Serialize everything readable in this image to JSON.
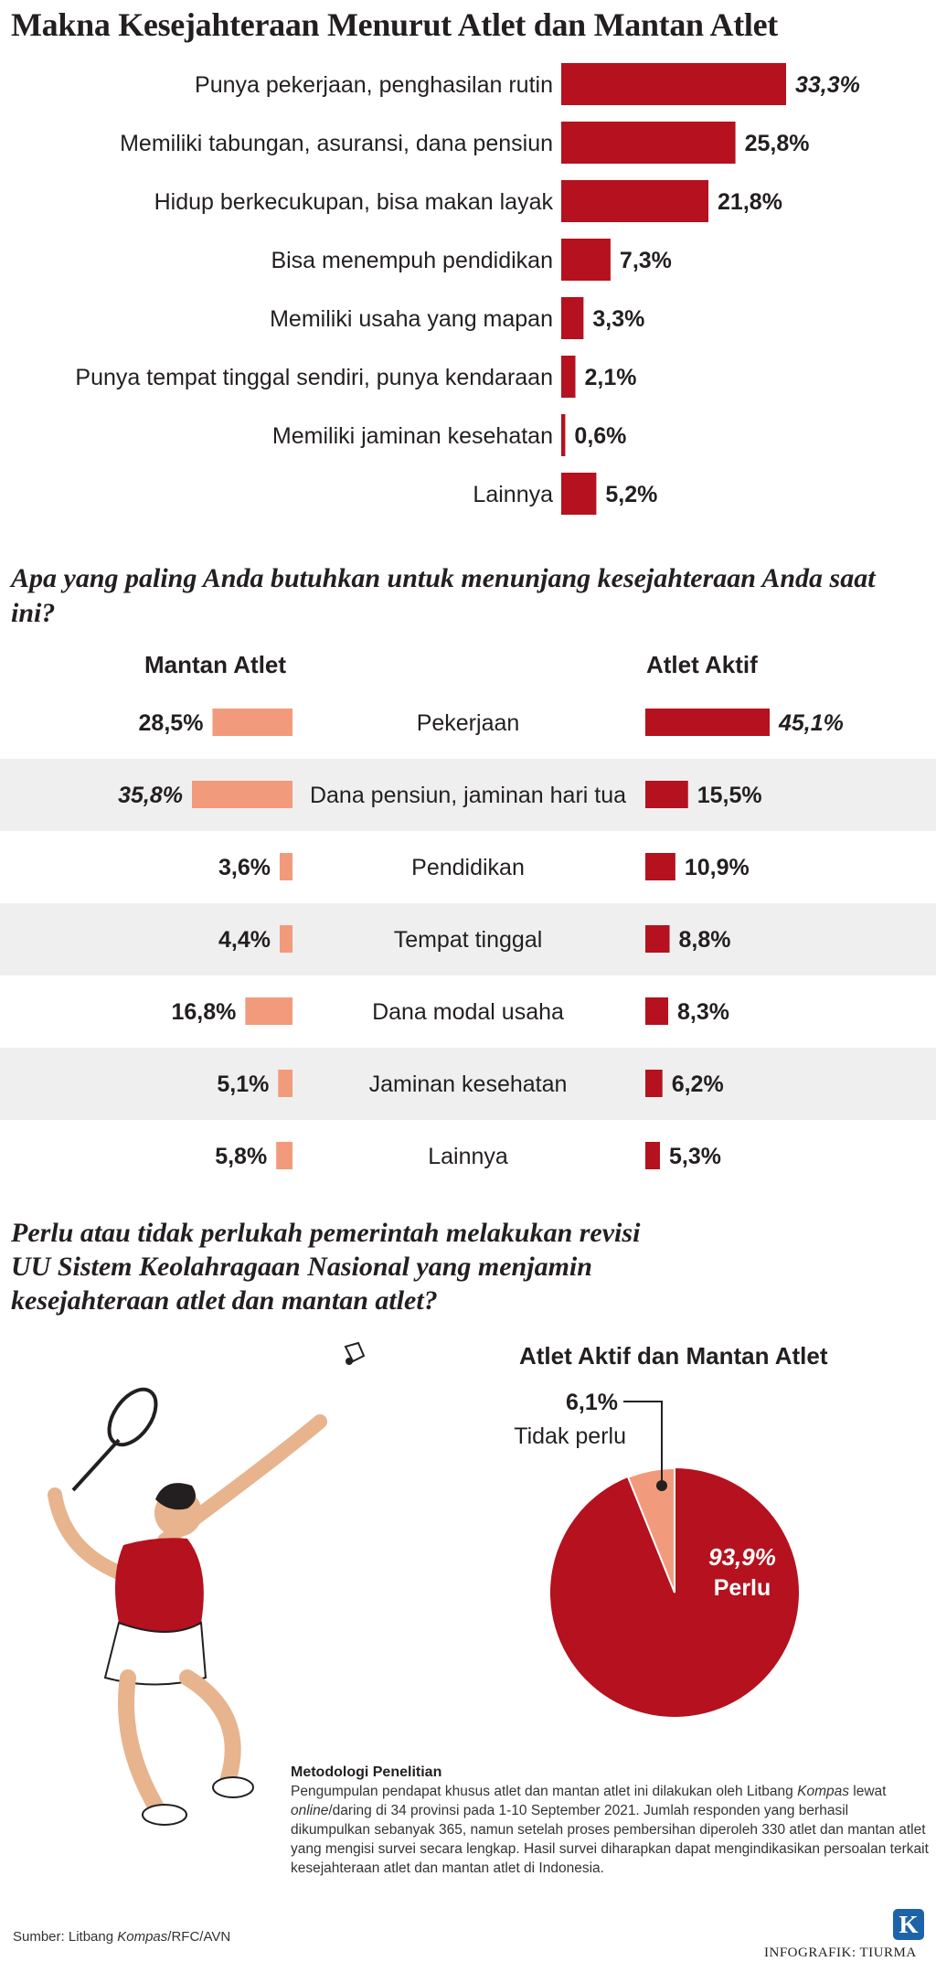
{
  "title": "Makna Kesejahteraan Menurut Atlet dan Mantan Atlet",
  "colors": {
    "dark_red": "#b5111e",
    "salmon": "#f29a7c",
    "stripe": "#efefef"
  },
  "chart_data": [
    {
      "type": "bar",
      "orientation": "horizontal",
      "title": "Makna Kesejahteraan Menurut Atlet dan Mantan Atlet",
      "categories": [
        "Punya pekerjaan, penghasilan rutin",
        "Memiliki tabungan, asuransi, dana pensiun",
        "Hidup berkecukupan, bisa makan layak",
        "Bisa menempuh pendidikan",
        "Memiliki usaha yang mapan",
        "Punya tempat tinggal sendiri, punya kendaraan",
        "Memiliki jaminan kesehatan",
        "Lainnya"
      ],
      "values": [
        33.3,
        25.8,
        21.8,
        7.3,
        3.3,
        2.1,
        0.6,
        5.2
      ],
      "labels": [
        "33,3%",
        "25,8%",
        "21,8%",
        "7,3%",
        "3,3%",
        "2,1%",
        "0,6%",
        "5,2%"
      ]
    },
    {
      "type": "bar",
      "orientation": "horizontal",
      "subtype": "butterfly",
      "title": "Apa yang paling Anda butuhkan untuk menunjang kesejahteraan Anda saat ini?",
      "categories": [
        "Pekerjaan",
        "Dana pensiun, jaminan hari tua",
        "Pendidikan",
        "Tempat tinggal",
        "Dana modal usaha",
        "Jaminan kesehatan",
        "Lainnya"
      ],
      "series": [
        {
          "name": "Mantan Atlet",
          "values": [
            28.5,
            35.8,
            3.6,
            4.4,
            16.8,
            5.1,
            5.8
          ],
          "labels": [
            "28,5%",
            "35,8%",
            "3,6%",
            "4,4%",
            "16,8%",
            "5,1%",
            "5,8%"
          ]
        },
        {
          "name": "Atlet Aktif",
          "values": [
            45.1,
            15.5,
            10.9,
            8.8,
            8.3,
            6.2,
            5.3
          ],
          "labels": [
            "45,1%",
            "15,5%",
            "10,9%",
            "8,8%",
            "8,3%",
            "6,2%",
            "5,3%"
          ]
        }
      ]
    },
    {
      "type": "pie",
      "title": "Atlet Aktif dan Mantan Atlet",
      "categories": [
        "Perlu",
        "Tidak perlu"
      ],
      "values": [
        93.9,
        6.1
      ],
      "labels": [
        "93,9%",
        "6,1%"
      ]
    }
  ],
  "section2": {
    "question": "Apa yang paling Anda butuhkan untuk menunjang kesejahteraan Anda saat ini?",
    "left_header": "Mantan Atlet",
    "right_header": "Atlet Aktif"
  },
  "section3": {
    "question_lines": [
      "Perlu atau tidak perlukah pemerintah melakukan revisi",
      "UU Sistem Keolahragaan Nasional yang menjamin",
      "kesejahteraan atlet dan mantan atlet?"
    ],
    "pie_title": "Atlet Aktif dan Mantan Atlet"
  },
  "methodology": {
    "title": "Metodologi Penelitian",
    "body_parts": [
      "Pengumpulan pendapat khusus atlet dan mantan atlet ini dilakukan oleh Litbang ",
      "Kompas",
      " lewat ",
      "online",
      "/daring di 34 provinsi pada 1-10 September 2021. Jumlah responden yang berhasil dikumpulkan sebanyak 365, namun setelah proses pembersihan diperoleh 330 atlet dan mantan atlet yang mengisi survei secara lengkap. Hasil survei diharapkan dapat mengindikasikan persoalan terkait kesejahteraan atlet dan mantan atlet di Indonesia."
    ]
  },
  "footer": {
    "source_prefix": "Sumber: Litbang ",
    "source_italic": "Kompas",
    "source_suffix": "/RFC/AVN",
    "credit": "INFOGRAFIK: TIURMA",
    "logo_letter": "K"
  }
}
